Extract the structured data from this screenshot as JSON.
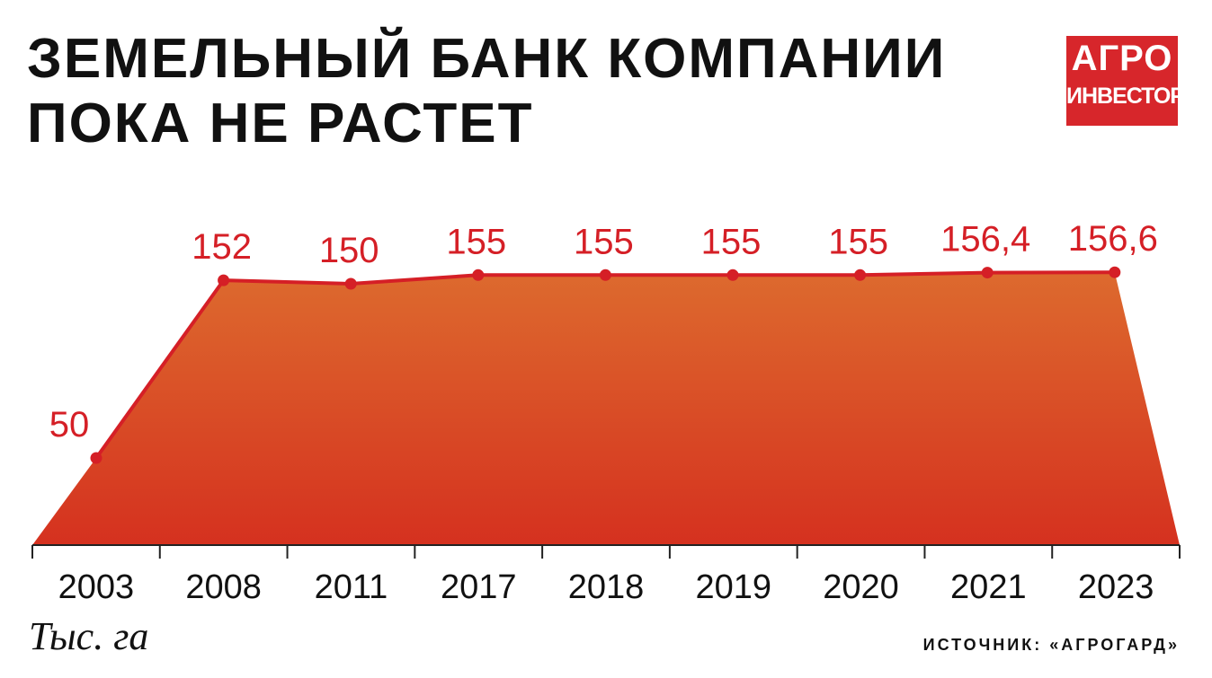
{
  "header": {
    "title_line1": "ЗЕМЕЛЬНЫЙ БАНК КОМПАНИИ",
    "title_line2": "ПОКА НЕ РАСТЕТ"
  },
  "logo": {
    "line1": "АГРО",
    "line2": "ИНВЕСТОР",
    "bg_color": "#d7262b"
  },
  "unit_label": "Тыс. га",
  "source": "ИСТОЧНИК: «АГРОГАРД»",
  "colors": {
    "line": "#d51f26",
    "area_top": "#dd6a2e",
    "area_bottom": "#d5311f",
    "label": "#d51f26",
    "axis": "#222222"
  },
  "chart_data": {
    "type": "area",
    "categories": [
      "2003",
      "2008",
      "2011",
      "2017",
      "2018",
      "2019",
      "2020",
      "2021",
      "2023"
    ],
    "values": [
      50,
      152,
      150,
      155,
      155,
      155,
      155,
      156.4,
      156.6
    ],
    "value_labels": [
      "50",
      "152",
      "150",
      "155",
      "155",
      "155",
      "155",
      "156,4",
      "156,6"
    ],
    "ylabel": "Тыс. га",
    "ylim": [
      0,
      200
    ],
    "grid": false,
    "legend": "none"
  }
}
